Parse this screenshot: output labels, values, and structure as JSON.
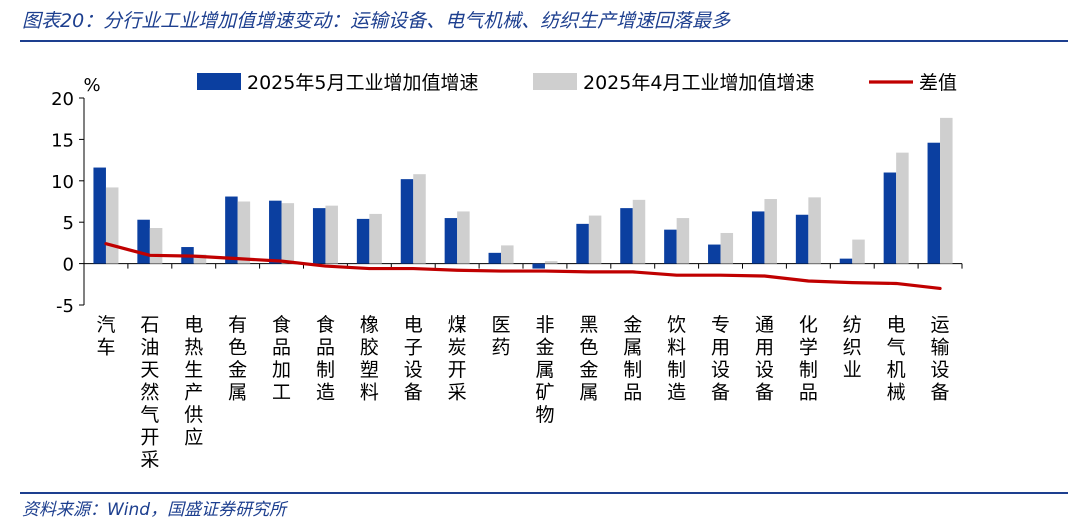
{
  "header": {
    "title": "图表20：分行业工业增加值增速变动：运输设备、电气机械、纺织生产增速回落最多"
  },
  "footer": {
    "source": "资料来源：Wind，国盛证券研究所"
  },
  "chart_data": {
    "type": "bar",
    "ylabel": "%",
    "ylim": [
      -5,
      20
    ],
    "yticks": [
      20,
      15,
      10,
      5,
      0,
      -5
    ],
    "legend_position": "top",
    "grid": false,
    "categories": [
      "汽车",
      "石油天然气开采",
      "电热生产供应",
      "有色金属",
      "食品加工",
      "食品制造",
      "橡胶塑料",
      "电子设备",
      "煤炭开采",
      "医药",
      "非金属矿物",
      "黑色金属",
      "金属制品",
      "饮料制造",
      "专用设备",
      "通用设备",
      "化学制品",
      "纺织业",
      "电气机械",
      "运输设备"
    ],
    "series": [
      {
        "name": "2025年5月工业增加值增速",
        "type": "bar",
        "color": "#0b3fa0",
        "values": [
          11.6,
          5.3,
          2.0,
          8.1,
          7.6,
          6.7,
          5.4,
          10.2,
          5.5,
          1.3,
          -0.6,
          4.8,
          6.7,
          4.1,
          2.3,
          6.3,
          5.9,
          0.6,
          11.0,
          14.6
        ]
      },
      {
        "name": "2025年4月工业增加值增速",
        "type": "bar",
        "color": "#cfcfcf",
        "values": [
          9.2,
          4.3,
          1.1,
          7.5,
          7.3,
          7.0,
          6.0,
          10.8,
          6.3,
          2.2,
          0.3,
          5.8,
          7.7,
          5.5,
          3.7,
          7.8,
          8.0,
          2.9,
          13.4,
          17.6
        ]
      },
      {
        "name": "差值",
        "type": "line",
        "color": "#c00000",
        "values": [
          2.4,
          1.0,
          0.9,
          0.6,
          0.3,
          -0.3,
          -0.6,
          -0.6,
          -0.8,
          -0.9,
          -0.9,
          -1.0,
          -1.0,
          -1.4,
          -1.4,
          -1.5,
          -2.1,
          -2.3,
          -2.4,
          -3.0
        ]
      }
    ]
  }
}
